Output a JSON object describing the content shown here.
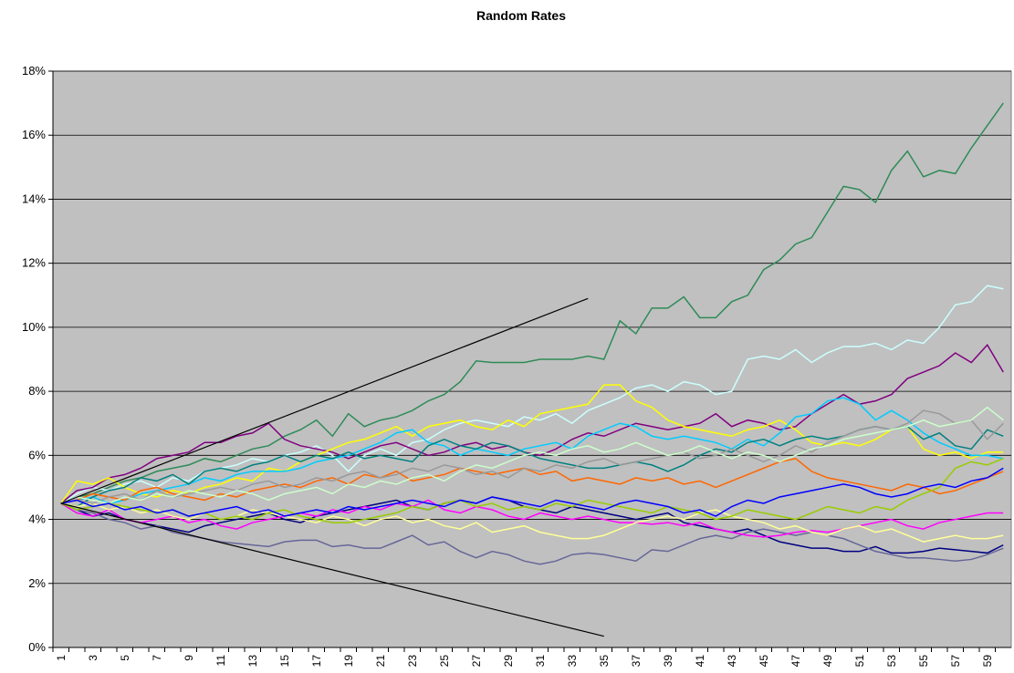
{
  "chart_data": {
    "type": "line",
    "title": "Random Rates",
    "categories": [
      1,
      null,
      3,
      null,
      5,
      null,
      7,
      null,
      9,
      null,
      11,
      null,
      13,
      null,
      15,
      null,
      17,
      null,
      19,
      null,
      21,
      null,
      23,
      null,
      25,
      null,
      27,
      null,
      29,
      null,
      31,
      null,
      33,
      null,
      35,
      null,
      37,
      null,
      39,
      null,
      41,
      null,
      43,
      null,
      45,
      null,
      47,
      null,
      49,
      null,
      51,
      null,
      53,
      null,
      55,
      null,
      57,
      null,
      59,
      null
    ],
    "ylim": [
      0,
      18
    ],
    "yticks": [
      {
        "value": 0,
        "label": "0%"
      },
      {
        "value": 2,
        "label": "2%"
      },
      {
        "value": 4,
        "label": "4%"
      },
      {
        "value": 6,
        "label": "6%"
      },
      {
        "value": 8,
        "label": "8%"
      },
      {
        "value": 10,
        "label": "10%"
      },
      {
        "value": 12,
        "label": "12%"
      },
      {
        "value": 14,
        "label": "14%"
      },
      {
        "value": 16,
        "label": "16%"
      },
      {
        "value": 18,
        "label": "18%"
      }
    ],
    "grid": true,
    "plot_background": "#c0c0c0",
    "series": [
      {
        "color": "#2e8b57",
        "values": [
          4.5,
          4.7,
          4.8,
          5.0,
          5.2,
          5.3,
          5.5,
          5.6,
          5.7,
          5.9,
          5.8,
          6.0,
          6.2,
          6.3,
          6.6,
          6.8,
          7.1,
          6.6,
          7.3,
          6.9,
          7.1,
          7.2,
          7.4,
          7.7,
          7.9,
          8.3,
          8.95,
          8.9,
          8.9,
          8.9,
          9.0,
          9.0,
          9.0,
          9.1,
          9.0,
          10.2,
          9.8,
          10.6,
          10.6,
          10.95,
          10.3,
          10.3,
          10.8,
          11.0,
          11.8,
          12.1,
          12.6,
          12.8,
          13.6,
          14.4,
          14.3,
          13.9,
          14.9,
          15.5,
          14.7,
          14.9,
          14.8,
          15.6,
          16.3,
          17.0
        ]
      },
      {
        "color": "#ccffff",
        "values": [
          4.5,
          4.8,
          5.0,
          4.9,
          5.1,
          5.2,
          5.0,
          5.3,
          5.2,
          5.5,
          5.6,
          5.7,
          5.9,
          5.8,
          6.0,
          6.1,
          6.3,
          6.0,
          5.5,
          6.0,
          6.2,
          6.0,
          6.4,
          6.5,
          6.8,
          7.0,
          7.1,
          7.0,
          6.9,
          7.2,
          7.1,
          7.3,
          7.0,
          7.4,
          7.6,
          7.8,
          8.1,
          8.2,
          8.0,
          8.3,
          8.2,
          7.9,
          8.0,
          9.0,
          9.1,
          9.0,
          9.3,
          8.9,
          9.2,
          9.4,
          9.4,
          9.5,
          9.3,
          9.6,
          9.5,
          10.0,
          10.7,
          10.8,
          11.3,
          11.2
        ]
      },
      {
        "color": "#800080",
        "values": [
          4.5,
          4.9,
          5.0,
          5.3,
          5.4,
          5.6,
          5.9,
          6.0,
          6.1,
          6.4,
          6.4,
          6.6,
          6.7,
          7.0,
          6.5,
          6.3,
          6.2,
          6.1,
          5.9,
          6.1,
          6.3,
          6.4,
          6.2,
          6.0,
          6.1,
          6.3,
          6.4,
          6.2,
          6.3,
          6.1,
          6.0,
          6.2,
          6.5,
          6.7,
          6.6,
          6.8,
          7.0,
          6.9,
          6.8,
          6.9,
          7.0,
          7.3,
          6.9,
          7.1,
          7.0,
          6.8,
          6.9,
          7.3,
          7.6,
          7.9,
          7.6,
          7.7,
          7.9,
          8.4,
          8.6,
          8.8,
          9.2,
          8.9,
          9.45,
          8.6
        ]
      },
      {
        "color": "#ffff00",
        "values": [
          4.5,
          5.2,
          5.1,
          5.3,
          5.0,
          4.8,
          4.7,
          4.9,
          4.8,
          5.0,
          5.1,
          5.3,
          5.2,
          5.6,
          5.5,
          5.8,
          6.0,
          6.2,
          6.4,
          6.5,
          6.7,
          6.9,
          6.6,
          6.9,
          7.0,
          7.1,
          6.9,
          6.8,
          7.1,
          6.9,
          7.3,
          7.4,
          7.5,
          7.6,
          8.2,
          8.2,
          7.7,
          7.5,
          7.1,
          6.9,
          6.8,
          6.7,
          6.6,
          6.8,
          6.9,
          7.1,
          6.8,
          6.4,
          6.3,
          6.4,
          6.3,
          6.5,
          6.8,
          6.9,
          6.2,
          6.0,
          6.1,
          5.9,
          6.1,
          6.1
        ]
      },
      {
        "color": "#00ccff",
        "values": [
          4.5,
          4.6,
          4.7,
          4.5,
          4.6,
          4.8,
          4.9,
          5.0,
          5.1,
          5.3,
          5.2,
          5.4,
          5.5,
          5.5,
          5.5,
          5.6,
          5.8,
          5.9,
          6.0,
          6.2,
          6.4,
          6.7,
          6.8,
          6.4,
          6.3,
          6.0,
          6.2,
          6.1,
          6.0,
          6.2,
          6.3,
          6.4,
          6.2,
          6.6,
          6.8,
          7.0,
          6.9,
          6.6,
          6.5,
          6.6,
          6.5,
          6.4,
          6.2,
          6.5,
          6.3,
          6.7,
          7.2,
          7.3,
          7.7,
          7.8,
          7.6,
          7.1,
          7.4,
          7.1,
          6.7,
          6.4,
          6.2,
          6.0,
          6.0,
          5.9
        ]
      },
      {
        "color": "#008080",
        "values": [
          4.5,
          4.4,
          4.7,
          4.9,
          5.0,
          5.3,
          5.2,
          5.4,
          5.1,
          5.5,
          5.6,
          5.5,
          5.7,
          5.8,
          6.0,
          5.8,
          6.0,
          5.9,
          6.1,
          5.9,
          6.0,
          5.9,
          5.8,
          6.3,
          6.5,
          6.3,
          6.2,
          6.4,
          6.3,
          6.1,
          5.9,
          5.8,
          5.7,
          5.6,
          5.6,
          5.7,
          5.8,
          5.7,
          5.5,
          5.7,
          6.0,
          6.2,
          6.1,
          6.4,
          6.5,
          6.3,
          6.5,
          6.6,
          6.5,
          6.6,
          6.8,
          6.9,
          6.8,
          6.9,
          6.5,
          6.7,
          6.3,
          6.2,
          6.8,
          6.6
        ]
      },
      {
        "color": "#ff6600",
        "values": [
          4.5,
          4.6,
          4.8,
          4.7,
          4.6,
          4.9,
          5.0,
          4.8,
          4.7,
          4.6,
          4.8,
          4.7,
          4.9,
          5.0,
          5.1,
          5.0,
          5.2,
          5.3,
          5.1,
          5.4,
          5.3,
          5.5,
          5.2,
          5.3,
          5.4,
          5.6,
          5.5,
          5.4,
          5.5,
          5.6,
          5.4,
          5.5,
          5.2,
          5.3,
          5.2,
          5.1,
          5.3,
          5.2,
          5.3,
          5.1,
          5.2,
          5.0,
          5.2,
          5.4,
          5.6,
          5.8,
          5.9,
          5.5,
          5.3,
          5.2,
          5.1,
          5.0,
          4.9,
          5.1,
          5.0,
          4.8,
          4.9,
          5.1,
          5.3,
          5.5
        ]
      },
      {
        "color": "#000080",
        "values": [
          4.5,
          4.3,
          4.1,
          4.2,
          4.0,
          3.9,
          3.8,
          3.7,
          3.6,
          3.8,
          3.9,
          4.0,
          4.1,
          4.2,
          4.0,
          3.9,
          4.1,
          4.2,
          4.3,
          4.4,
          4.5,
          4.6,
          4.4,
          4.3,
          4.5,
          4.6,
          4.5,
          4.7,
          4.6,
          4.4,
          4.3,
          4.2,
          4.4,
          4.3,
          4.2,
          4.1,
          4.0,
          4.1,
          4.2,
          3.9,
          3.8,
          3.7,
          3.6,
          3.7,
          3.5,
          3.3,
          3.2,
          3.1,
          3.1,
          3.0,
          3.0,
          3.15,
          2.95,
          2.95,
          3.0,
          3.1,
          3.05,
          3.0,
          2.95,
          3.2
        ]
      },
      {
        "color": "#666699",
        "values": [
          4.5,
          4.3,
          4.2,
          4.0,
          3.9,
          3.7,
          3.8,
          3.6,
          3.5,
          3.4,
          3.3,
          3.25,
          3.2,
          3.15,
          3.3,
          3.35,
          3.35,
          3.15,
          3.2,
          3.1,
          3.1,
          3.3,
          3.5,
          3.2,
          3.3,
          3.0,
          2.8,
          3.0,
          2.9,
          2.7,
          2.6,
          2.7,
          2.9,
          2.95,
          2.9,
          2.8,
          2.7,
          3.05,
          3.0,
          3.2,
          3.4,
          3.5,
          3.4,
          3.6,
          3.7,
          3.6,
          3.5,
          3.6,
          3.5,
          3.4,
          3.2,
          3.0,
          2.9,
          2.8,
          2.8,
          2.75,
          2.7,
          2.75,
          2.9,
          3.1
        ]
      },
      {
        "color": "#ff00ff",
        "values": [
          4.5,
          4.2,
          4.1,
          4.3,
          4.0,
          3.9,
          4.0,
          4.1,
          3.9,
          4.0,
          3.8,
          3.7,
          3.9,
          4.0,
          4.1,
          4.2,
          4.1,
          4.3,
          4.2,
          4.4,
          4.3,
          4.5,
          4.4,
          4.6,
          4.3,
          4.2,
          4.4,
          4.3,
          4.1,
          4.0,
          4.2,
          4.1,
          4.0,
          4.1,
          4.0,
          3.9,
          3.9,
          3.85,
          3.9,
          3.8,
          3.9,
          3.7,
          3.6,
          3.5,
          3.45,
          3.5,
          3.6,
          3.65,
          3.6,
          3.7,
          3.8,
          3.9,
          4.0,
          3.8,
          3.7,
          3.9,
          4.0,
          4.1,
          4.2,
          4.2
        ]
      },
      {
        "color": "#ffff99",
        "values": [
          4.5,
          4.4,
          4.5,
          4.3,
          4.4,
          4.2,
          4.3,
          4.1,
          4.0,
          4.2,
          4.0,
          4.1,
          4.3,
          4.2,
          4.1,
          4.0,
          3.9,
          4.1,
          4.0,
          3.8,
          4.0,
          4.1,
          3.9,
          4.0,
          3.8,
          3.7,
          3.9,
          3.6,
          3.7,
          3.8,
          3.6,
          3.5,
          3.4,
          3.4,
          3.5,
          3.7,
          3.9,
          4.0,
          4.1,
          4.0,
          4.2,
          4.3,
          4.1,
          4.0,
          3.9,
          3.7,
          3.8,
          3.6,
          3.5,
          3.7,
          3.8,
          3.6,
          3.7,
          3.5,
          3.3,
          3.4,
          3.5,
          3.4,
          3.4,
          3.5
        ]
      },
      {
        "color": "#999999",
        "values": [
          4.5,
          4.6,
          4.5,
          4.7,
          4.8,
          4.6,
          4.9,
          4.7,
          4.8,
          4.9,
          5.0,
          4.9,
          5.1,
          5.2,
          5.0,
          5.1,
          5.3,
          5.2,
          5.4,
          5.5,
          5.3,
          5.4,
          5.6,
          5.5,
          5.7,
          5.6,
          5.4,
          5.5,
          5.3,
          5.6,
          5.5,
          5.7,
          5.6,
          5.8,
          5.9,
          5.7,
          5.8,
          5.9,
          6.0,
          6.1,
          5.9,
          6.0,
          6.2,
          6.0,
          5.8,
          6.0,
          6.3,
          6.1,
          6.4,
          6.6,
          6.8,
          6.9,
          6.8,
          7.0,
          7.4,
          7.3,
          7.0,
          7.1,
          6.5,
          7.0
        ]
      },
      {
        "color": "#ccffcc",
        "values": [
          4.5,
          4.7,
          4.6,
          4.5,
          4.7,
          4.6,
          4.8,
          4.7,
          4.9,
          4.8,
          4.7,
          4.9,
          4.8,
          4.6,
          4.8,
          4.9,
          5.0,
          4.8,
          5.1,
          5.0,
          5.2,
          5.1,
          5.3,
          5.4,
          5.2,
          5.5,
          5.7,
          5.6,
          5.8,
          6.0,
          6.1,
          6.0,
          6.2,
          6.3,
          6.1,
          6.2,
          6.4,
          6.2,
          6.0,
          6.1,
          6.3,
          6.1,
          5.9,
          6.1,
          6.0,
          5.8,
          6.0,
          6.2,
          6.3,
          6.5,
          6.6,
          6.7,
          6.8,
          6.9,
          7.1,
          6.9,
          7.0,
          7.1,
          7.5,
          7.1
        ]
      },
      {
        "color": "#99cc00",
        "values": [
          4.5,
          4.3,
          4.4,
          4.5,
          4.4,
          4.3,
          4.2,
          4.3,
          4.1,
          4.2,
          4.0,
          4.1,
          4.0,
          4.2,
          4.3,
          4.1,
          4.0,
          3.9,
          3.9,
          4.0,
          4.1,
          4.2,
          4.4,
          4.3,
          4.5,
          4.6,
          4.4,
          4.5,
          4.3,
          4.4,
          4.3,
          4.5,
          4.4,
          4.6,
          4.5,
          4.4,
          4.3,
          4.2,
          4.4,
          4.3,
          4.2,
          4.0,
          4.1,
          4.3,
          4.2,
          4.1,
          4.0,
          4.2,
          4.4,
          4.3,
          4.2,
          4.4,
          4.3,
          4.6,
          4.8,
          5.0,
          5.6,
          5.8,
          5.7,
          5.9
        ]
      },
      {
        "color": "#0000ff",
        "values": [
          4.5,
          4.6,
          4.4,
          4.5,
          4.3,
          4.4,
          4.2,
          4.3,
          4.1,
          4.2,
          4.3,
          4.4,
          4.2,
          4.3,
          4.1,
          4.2,
          4.3,
          4.2,
          4.4,
          4.3,
          4.4,
          4.5,
          4.6,
          4.5,
          4.4,
          4.6,
          4.5,
          4.7,
          4.6,
          4.5,
          4.4,
          4.6,
          4.5,
          4.4,
          4.3,
          4.5,
          4.6,
          4.5,
          4.4,
          4.2,
          4.3,
          4.1,
          4.4,
          4.6,
          4.5,
          4.7,
          4.8,
          4.9,
          5.0,
          5.1,
          5.0,
          4.8,
          4.7,
          4.8,
          5.0,
          5.1,
          5.0,
          5.2,
          5.3,
          5.6
        ]
      }
    ],
    "trend_lines": [
      {
        "color": "#000000",
        "x": [
          1,
          34
        ],
        "values": [
          4.5,
          10.9
        ]
      },
      {
        "color": "#000000",
        "x": [
          1,
          35
        ],
        "values": [
          4.5,
          0.35
        ]
      }
    ]
  }
}
